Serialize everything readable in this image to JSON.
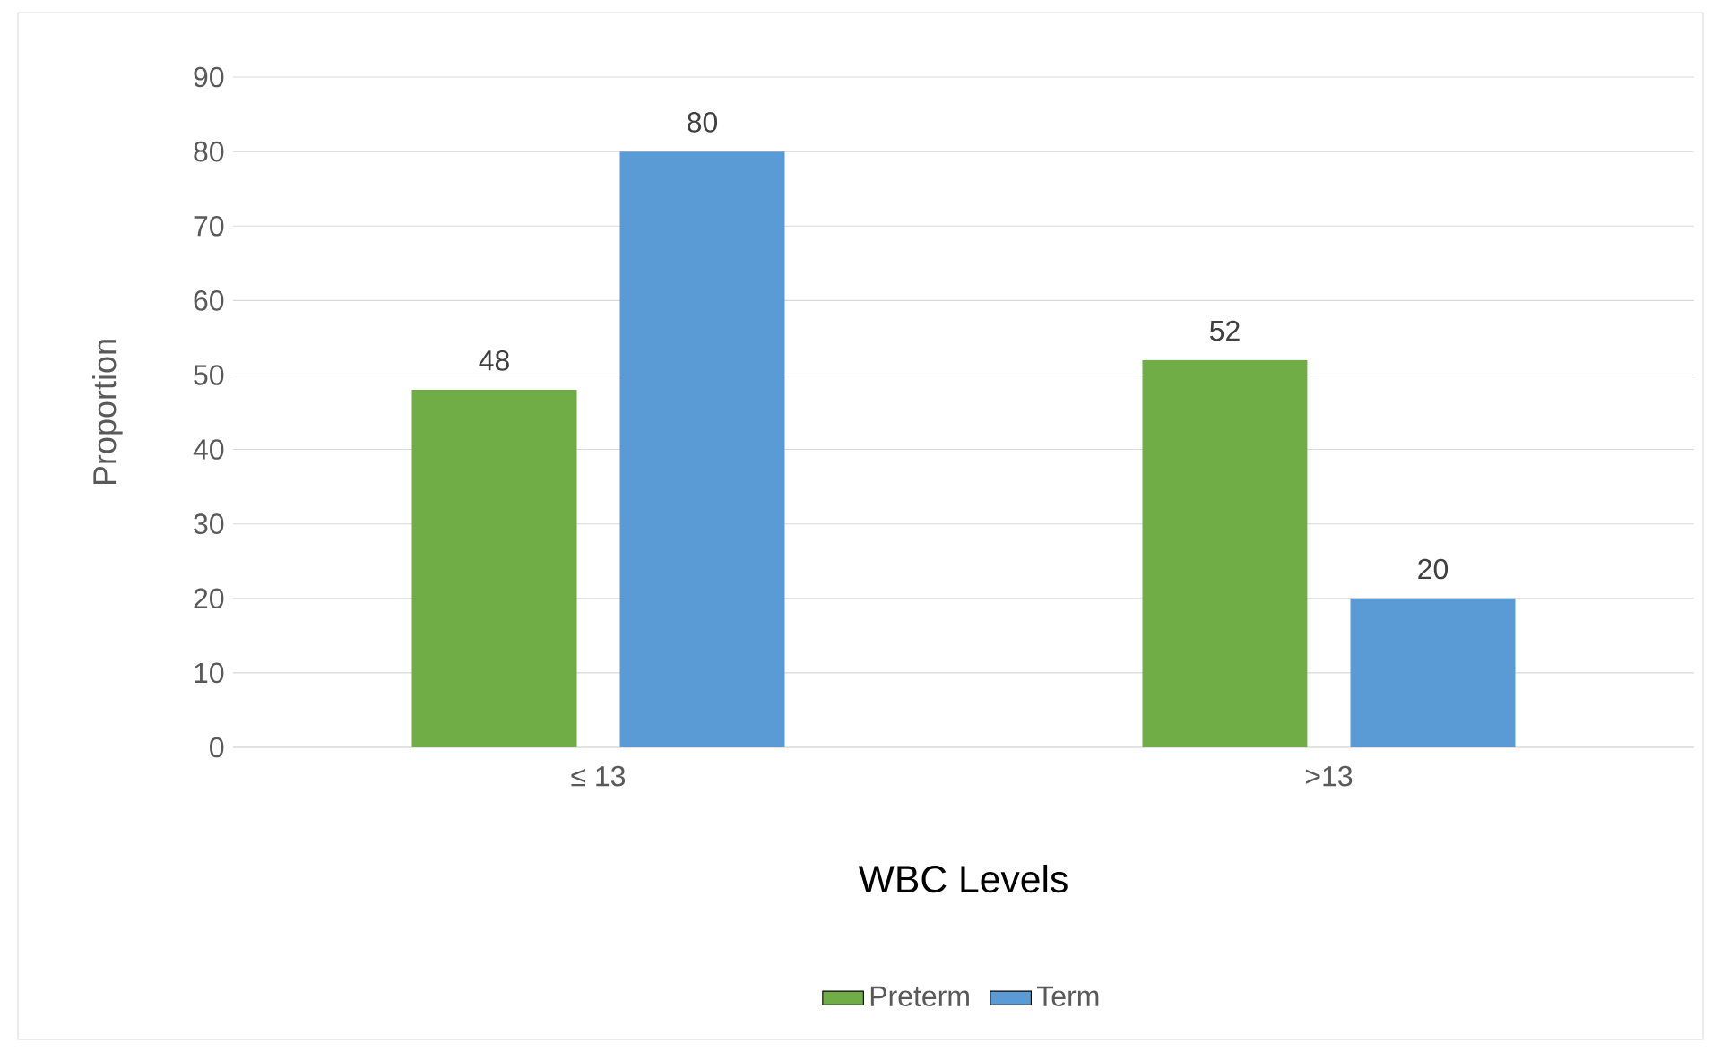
{
  "chart_data": {
    "type": "bar",
    "xlabel": "WBC Levels",
    "ylabel": "Proportion",
    "categories": [
      "≤ 13",
      ">13"
    ],
    "series": [
      {
        "name": "Preterm",
        "color": "#70ad47",
        "values": [
          48,
          52
        ]
      },
      {
        "name": "Term",
        "color": "#5b9bd5",
        "values": [
          80,
          20
        ]
      }
    ],
    "ylim": [
      0,
      90
    ],
    "yticks": [
      0,
      10,
      20,
      30,
      40,
      50,
      60,
      70,
      80,
      90
    ],
    "grid": "y",
    "legend": "bottom",
    "data_labels": true
  }
}
